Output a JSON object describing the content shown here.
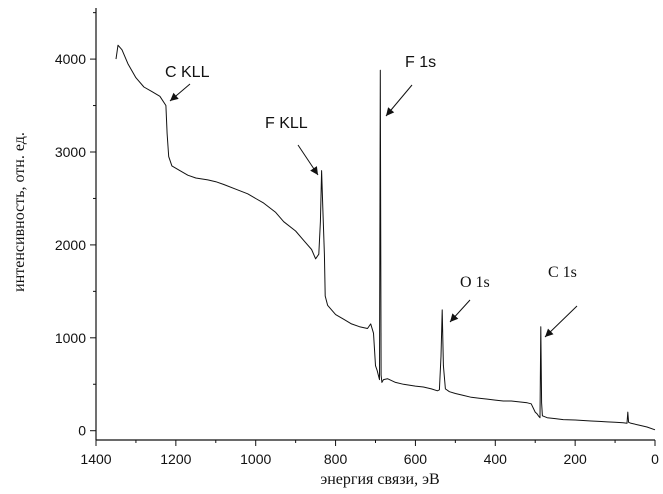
{
  "chart_data": {
    "type": "line",
    "xlabel": "энергия связи, эВ",
    "ylabel": "интенсивность, отн. ед.",
    "xlim": [
      1400,
      0
    ],
    "ylim": [
      -100,
      4550
    ],
    "x_ticks": [
      1400,
      1200,
      1000,
      800,
      600,
      400,
      200,
      0
    ],
    "y_ticks": [
      0,
      1000,
      2000,
      3000,
      4000
    ],
    "grid": false,
    "series": [
      {
        "name": "",
        "x": [
          1350,
          1345,
          1335,
          1320,
          1300,
          1280,
          1260,
          1240,
          1225,
          1222,
          1218,
          1210,
          1190,
          1170,
          1150,
          1120,
          1100,
          1080,
          1050,
          1020,
          1000,
          980,
          950,
          930,
          900,
          880,
          860,
          850,
          842,
          838,
          835,
          832,
          828,
          826,
          820,
          800,
          780,
          760,
          740,
          720,
          712,
          705,
          700,
          696,
          693,
          690,
          688,
          686,
          684,
          680,
          670,
          650,
          630,
          600,
          580,
          560,
          545,
          540,
          536,
          533,
          530,
          525,
          515,
          500,
          480,
          460,
          440,
          420,
          400,
          380,
          360,
          340,
          320,
          310,
          300,
          295,
          292,
          290,
          288,
          286,
          284,
          282,
          270,
          250,
          230,
          200,
          180,
          160,
          140,
          120,
          100,
          80,
          70,
          68,
          66,
          60,
          40,
          20,
          0
        ],
        "y": [
          4000,
          4150,
          4100,
          3950,
          3800,
          3700,
          3650,
          3600,
          3500,
          3200,
          2950,
          2850,
          2800,
          2750,
          2720,
          2700,
          2680,
          2650,
          2600,
          2550,
          2500,
          2450,
          2350,
          2250,
          2150,
          2050,
          1950,
          1850,
          1900,
          2250,
          2800,
          2400,
          1900,
          1450,
          1350,
          1250,
          1200,
          1150,
          1120,
          1100,
          1150,
          1050,
          700,
          650,
          600,
          550,
          3880,
          600,
          520,
          550,
          560,
          520,
          500,
          480,
          470,
          450,
          430,
          440,
          800,
          1300,
          700,
          450,
          420,
          400,
          380,
          360,
          350,
          340,
          330,
          320,
          320,
          310,
          300,
          290,
          200,
          180,
          160,
          150,
          140,
          1120,
          300,
          160,
          140,
          130,
          120,
          115,
          110,
          105,
          100,
          95,
          90,
          85,
          80,
          200,
          90,
          80,
          60,
          40,
          10
        ]
      }
    ],
    "annotations": [
      {
        "text": "C KLL",
        "x": 1220,
        "y": 3600
      },
      {
        "text": "F KLL",
        "x": 832,
        "y": 2800
      },
      {
        "text": "F 1s",
        "x": 688,
        "y": 3400
      },
      {
        "text": "O 1s",
        "x": 530,
        "y": 1200
      },
      {
        "text": "C 1s",
        "x": 286,
        "y": 1080
      }
    ],
    "colors": {
      "line": "#111111",
      "axis": "#111111",
      "background": "#ffffff"
    }
  }
}
